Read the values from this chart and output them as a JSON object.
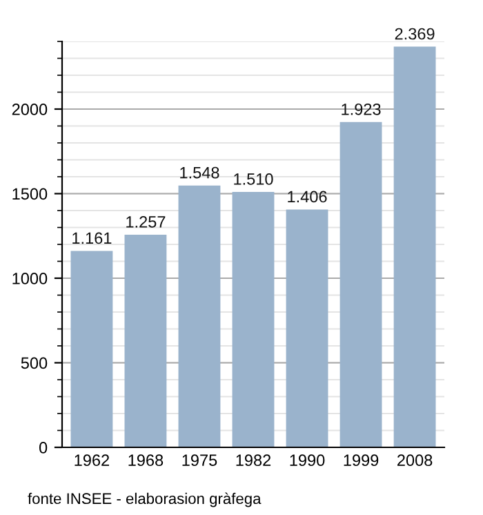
{
  "chart_data": {
    "type": "bar",
    "categories": [
      "1962",
      "1968",
      "1975",
      "1982",
      "1990",
      "1999",
      "2008"
    ],
    "values": [
      1161,
      1257,
      1548,
      1510,
      1406,
      1923,
      2369
    ],
    "value_labels": [
      "1.161",
      "1.257",
      "1.548",
      "1.510",
      "1.406",
      "1.923",
      "2.369"
    ],
    "color": "#9ab3cc",
    "ylim": [
      0,
      2400
    ],
    "yticks": [
      0,
      500,
      1000,
      1500,
      2000
    ],
    "grid": "y",
    "annotations": [
      "fonte INSEE - elaborasion gràfega"
    ]
  }
}
